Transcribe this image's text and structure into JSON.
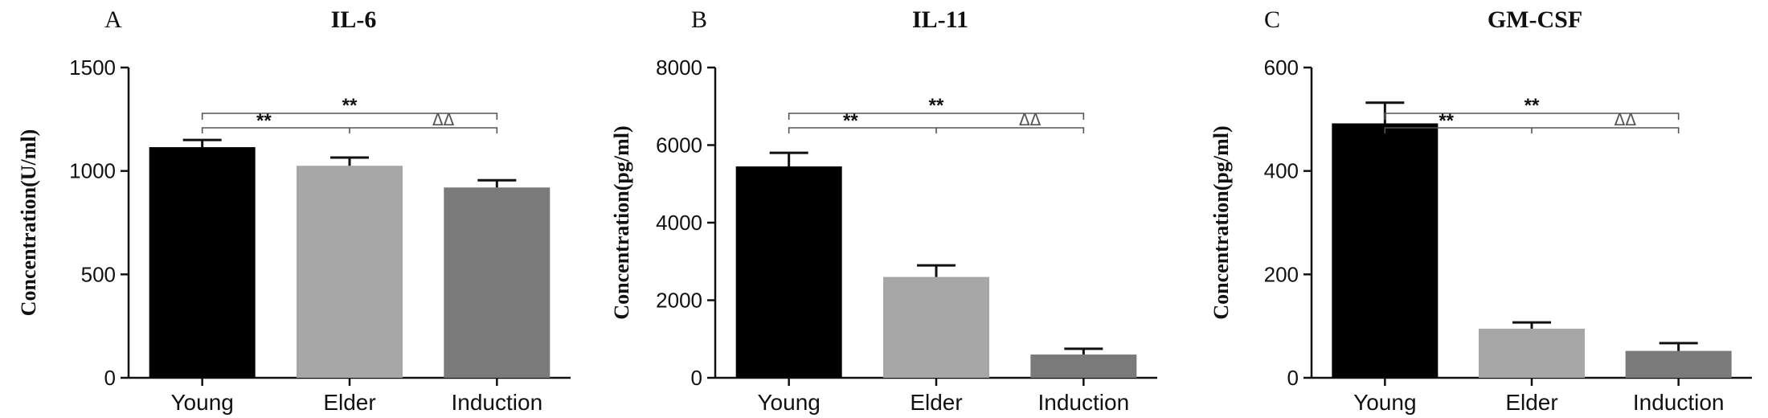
{
  "figure": {
    "background": "#ffffff"
  },
  "chart_data": [
    {
      "panel": "A",
      "type": "bar",
      "title": "IL-6",
      "ylabel": "Concentration(U/ml)",
      "xlabel": "",
      "categories": [
        "Young",
        "Elder",
        "Induction"
      ],
      "values": [
        1115,
        1025,
        920
      ],
      "errors": [
        35,
        40,
        35
      ],
      "ylim": [
        0,
        1500
      ],
      "yticks": [
        0,
        500,
        1000,
        1500
      ],
      "bar_colors": [
        "#000000",
        "#a6a6a6",
        "#7a7a7a"
      ],
      "grid": false,
      "significance": [
        {
          "from": 0,
          "to": 1,
          "label": "**"
        },
        {
          "from": 0,
          "to": 2,
          "label": "**"
        },
        {
          "from": 1,
          "to": 2,
          "label": "ΔΔ"
        }
      ]
    },
    {
      "panel": "B",
      "type": "bar",
      "title": "IL-11",
      "ylabel": "Concentration(pg/ml)",
      "xlabel": "",
      "categories": [
        "Young",
        "Elder",
        "Induction"
      ],
      "values": [
        5450,
        2600,
        600
      ],
      "errors": [
        350,
        300,
        150
      ],
      "ylim": [
        0,
        8000
      ],
      "yticks": [
        0,
        2000,
        4000,
        6000,
        8000
      ],
      "bar_colors": [
        "#000000",
        "#a6a6a6",
        "#7a7a7a"
      ],
      "grid": false,
      "significance": [
        {
          "from": 0,
          "to": 1,
          "label": "**"
        },
        {
          "from": 0,
          "to": 2,
          "label": "**"
        },
        {
          "from": 1,
          "to": 2,
          "label": "ΔΔ"
        }
      ]
    },
    {
      "panel": "C",
      "type": "bar",
      "title": "GM-CSF",
      "ylabel": "Concentration(pg/ml)",
      "xlabel": "",
      "categories": [
        "Young",
        "Elder",
        "Induction"
      ],
      "values": [
        492,
        95,
        52
      ],
      "errors": [
        40,
        12,
        15
      ],
      "ylim": [
        0,
        600
      ],
      "yticks": [
        0,
        200,
        400,
        600
      ],
      "bar_colors": [
        "#000000",
        "#a6a6a6",
        "#7a7a7a"
      ],
      "grid": false,
      "significance": [
        {
          "from": 0,
          "to": 1,
          "label": "**"
        },
        {
          "from": 0,
          "to": 2,
          "label": "**"
        },
        {
          "from": 1,
          "to": 2,
          "label": "ΔΔ"
        }
      ]
    }
  ]
}
